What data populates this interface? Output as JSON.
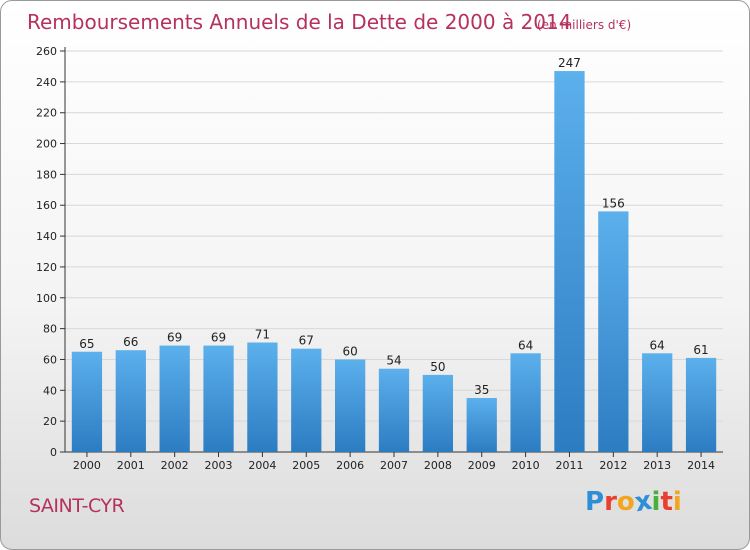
{
  "chart_data": {
    "type": "bar",
    "title": "Remboursements Annuels de la Dette de 2000 à 2014",
    "subtitle": "(en milliers d'€)",
    "categories": [
      "2000",
      "2001",
      "2002",
      "2003",
      "2004",
      "2005",
      "2006",
      "2007",
      "2008",
      "2009",
      "2010",
      "2011",
      "2012",
      "2013",
      "2014"
    ],
    "values": [
      65,
      66,
      69,
      69,
      71,
      67,
      60,
      54,
      50,
      35,
      64,
      247,
      156,
      64,
      61
    ],
    "ylim": [
      0,
      260
    ],
    "yticks": [
      0,
      20,
      40,
      60,
      80,
      100,
      120,
      140,
      160,
      180,
      200,
      220,
      240,
      260
    ],
    "xlabel": "",
    "ylabel": "",
    "grid": true
  },
  "footer": {
    "town": "SAINT-CYR",
    "logo_letters": [
      {
        "char": "P",
        "color": "#2e8fd6"
      },
      {
        "char": "r",
        "color": "#e8402f"
      },
      {
        "char": "o",
        "color": "#f2a51e"
      },
      {
        "char": "x",
        "color": "#2e8fd6"
      },
      {
        "char": "i",
        "color": "#4caf3a"
      },
      {
        "char": "t",
        "color": "#e8402f"
      },
      {
        "char": "i",
        "color": "#f2a51e"
      }
    ]
  },
  "colors": {
    "title": "#b5315f",
    "bar_light": "#5aaeea",
    "bar_dark": "#2f7fc4",
    "grid": "#d8d8d8"
  }
}
